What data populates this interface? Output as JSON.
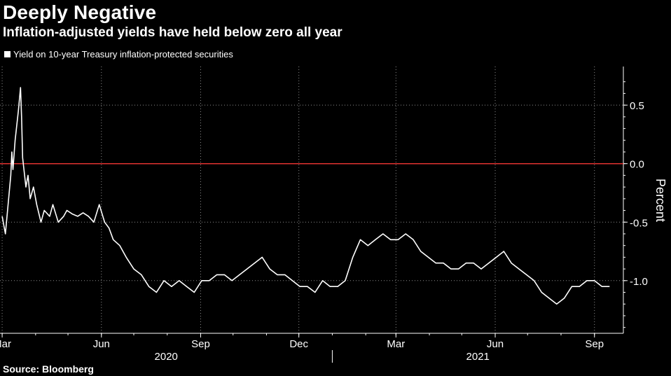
{
  "title": "Deeply Negative",
  "subtitle": "Inflation-adjusted yields have held below zero all year",
  "legend": "Yield on 10-year Treasury inflation-protected securities",
  "source": "Source: Bloomberg",
  "colors": {
    "background": "#000000",
    "line": "#ffffff",
    "zero_line": "#e0322f",
    "grid": "#8c8c8c"
  },
  "chart_data": {
    "type": "line",
    "ylabel": "Percent",
    "ylim": [
      -1.45,
      0.83
    ],
    "yticks": [
      0.5,
      0.0,
      -0.5,
      -1.0
    ],
    "ytick_labels": [
      "0.5",
      "0.0",
      "-0.5",
      "-1.0"
    ],
    "x_tick_labels": [
      "Mar",
      "Jun",
      "Sep",
      "Dec",
      "Mar",
      "Jun",
      "Sep"
    ],
    "year_labels": [
      "2020",
      "2021"
    ],
    "reference_line": 0.0,
    "grid": true,
    "legend_position": "top-left",
    "series": [
      {
        "name": "Yield on 10-year Treasury inflation-protected securities",
        "x": [
          "2020-03-01",
          "2020-03-04",
          "2020-03-06",
          "2020-03-09",
          "2020-03-10",
          "2020-03-11",
          "2020-03-13",
          "2020-03-16",
          "2020-03-18",
          "2020-03-19",
          "2020-03-20",
          "2020-03-23",
          "2020-03-25",
          "2020-03-27",
          "2020-03-30",
          "2020-04-02",
          "2020-04-06",
          "2020-04-09",
          "2020-04-14",
          "2020-04-17",
          "2020-04-22",
          "2020-04-27",
          "2020-04-30",
          "2020-05-05",
          "2020-05-10",
          "2020-05-15",
          "2020-05-20",
          "2020-05-25",
          "2020-05-30",
          "2020-06-04",
          "2020-06-08",
          "2020-06-12",
          "2020-06-18",
          "2020-06-24",
          "2020-07-01",
          "2020-07-08",
          "2020-07-15",
          "2020-07-22",
          "2020-07-29",
          "2020-08-05",
          "2020-08-12",
          "2020-08-19",
          "2020-08-26",
          "2020-09-02",
          "2020-09-09",
          "2020-09-16",
          "2020-09-23",
          "2020-09-30",
          "2020-10-07",
          "2020-10-14",
          "2020-10-21",
          "2020-10-28",
          "2020-11-04",
          "2020-11-11",
          "2020-11-18",
          "2020-11-25",
          "2020-12-02",
          "2020-12-09",
          "2020-12-16",
          "2020-12-23",
          "2020-12-30",
          "2021-01-06",
          "2021-01-13",
          "2021-01-20",
          "2021-01-27",
          "2021-02-03",
          "2021-02-10",
          "2021-02-17",
          "2021-02-24",
          "2021-03-03",
          "2021-03-10",
          "2021-03-17",
          "2021-03-24",
          "2021-03-31",
          "2021-04-07",
          "2021-04-14",
          "2021-04-21",
          "2021-04-28",
          "2021-05-05",
          "2021-05-12",
          "2021-05-19",
          "2021-05-26",
          "2021-06-02",
          "2021-06-09",
          "2021-06-16",
          "2021-06-23",
          "2021-06-30",
          "2021-07-07",
          "2021-07-14",
          "2021-07-21",
          "2021-07-28",
          "2021-08-04",
          "2021-08-11",
          "2021-08-18",
          "2021-08-25",
          "2021-09-01",
          "2021-09-08",
          "2021-09-15"
        ],
        "values": [
          -0.45,
          -0.6,
          -0.4,
          -0.1,
          0.1,
          -0.05,
          0.2,
          0.45,
          0.65,
          0.4,
          0.05,
          -0.2,
          -0.1,
          -0.3,
          -0.2,
          -0.35,
          -0.5,
          -0.4,
          -0.45,
          -0.35,
          -0.5,
          -0.45,
          -0.4,
          -0.43,
          -0.45,
          -0.42,
          -0.45,
          -0.5,
          -0.35,
          -0.5,
          -0.55,
          -0.65,
          -0.7,
          -0.8,
          -0.9,
          -0.95,
          -1.05,
          -1.1,
          -1.0,
          -1.05,
          -1.0,
          -1.05,
          -1.1,
          -1.0,
          -1.0,
          -0.95,
          -0.95,
          -1.0,
          -0.95,
          -0.9,
          -0.85,
          -0.8,
          -0.9,
          -0.95,
          -0.95,
          -1.0,
          -1.05,
          -1.05,
          -1.1,
          -1.0,
          -1.05,
          -1.05,
          -1.0,
          -0.8,
          -0.65,
          -0.7,
          -0.65,
          -0.6,
          -0.65,
          -0.65,
          -0.6,
          -0.65,
          -0.75,
          -0.8,
          -0.85,
          -0.85,
          -0.9,
          -0.9,
          -0.85,
          -0.85,
          -0.9,
          -0.85,
          -0.8,
          -0.75,
          -0.85,
          -0.9,
          -0.95,
          -1.0,
          -1.1,
          -1.15,
          -1.2,
          -1.15,
          -1.05,
          -1.05,
          -1.0,
          -1.0,
          -1.05,
          -1.05
        ]
      }
    ]
  }
}
